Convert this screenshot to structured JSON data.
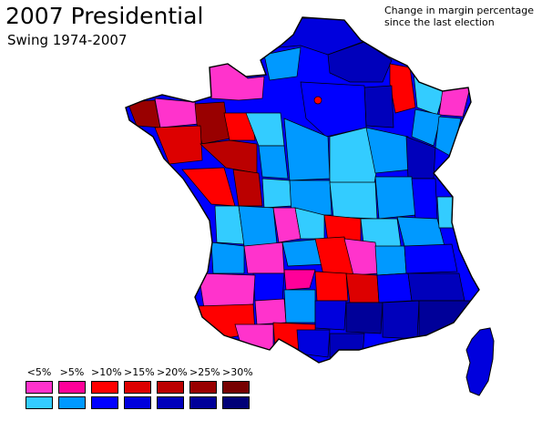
{
  "title": "2007 Presidential",
  "subtitle": "Swing 1974-2007",
  "note_line1": "Change in margin percentage",
  "note_line2": "since the last election",
  "legend": [
    {
      "label": "<5%",
      "red": "#ff33cc",
      "blue": "#33ccff"
    },
    {
      "label": ">5%",
      "red": "#ff0099",
      "blue": "#0099ff"
    },
    {
      "label": ">10%",
      "red": "#ff0000",
      "blue": "#0000ff"
    },
    {
      "label": ">15%",
      "red": "#dd0000",
      "blue": "#0000dd"
    },
    {
      "label": ">20%",
      "red": "#bb0000",
      "blue": "#0000bb"
    },
    {
      "label": ">25%",
      "red": "#990000",
      "blue": "#000099"
    },
    {
      "label": ">30%",
      "red": "#770000",
      "blue": "#000077"
    }
  ],
  "colors": {
    "outline": "#000000",
    "background": "#ffffff"
  }
}
